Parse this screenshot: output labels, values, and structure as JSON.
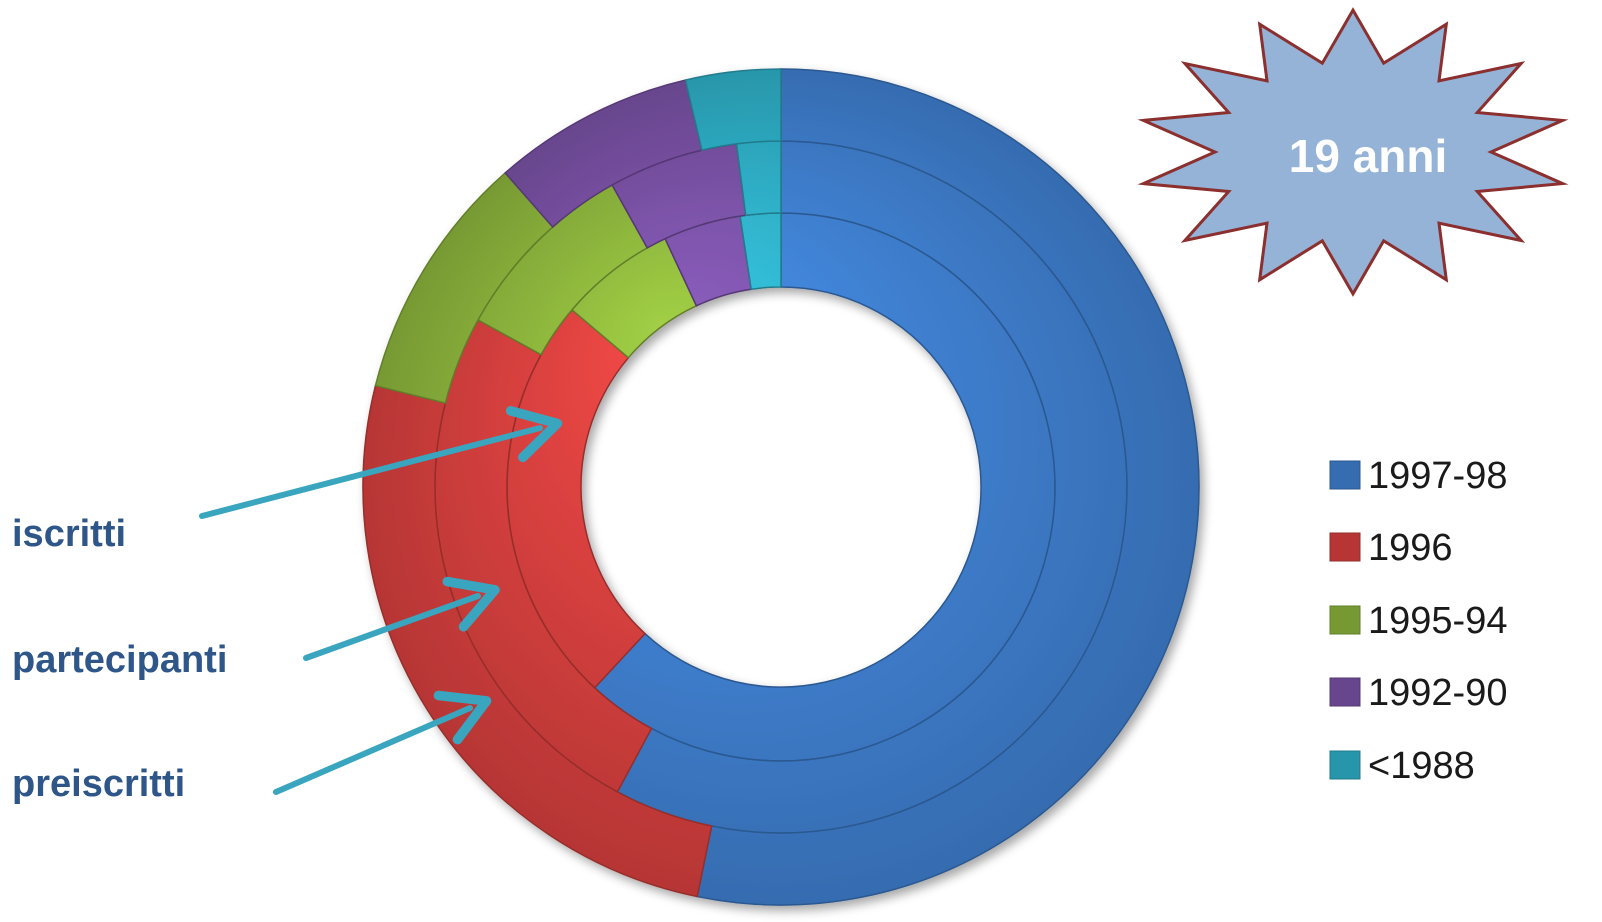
{
  "chart_data": {
    "type": "doughnut",
    "rings": [
      {
        "name": "iscritti",
        "values": [
          65.0,
          25.5,
          7.2,
          4.8,
          2.5
        ]
      },
      {
        "name": "partecipanti",
        "values": [
          62.0,
          27.0,
          9.5,
          6.5,
          2.2
        ]
      },
      {
        "name": "preiscritti",
        "values": [
          58.0,
          28.0,
          10.5,
          8.5,
          4.0
        ]
      }
    ],
    "categories": [
      "1997-98",
      "1996",
      "1995-94",
      "1992-90",
      "<1988"
    ],
    "colors": [
      "#3f7fcf",
      "#d6403e",
      "#8cb43c",
      "#7a52a6",
      "#2fb0c8"
    ],
    "legend_position": "right"
  },
  "badge": {
    "text": "19 anni",
    "fill": "#94b3d6",
    "stroke": "#8b2f2f"
  },
  "arrow_color": "#3aa5bf"
}
